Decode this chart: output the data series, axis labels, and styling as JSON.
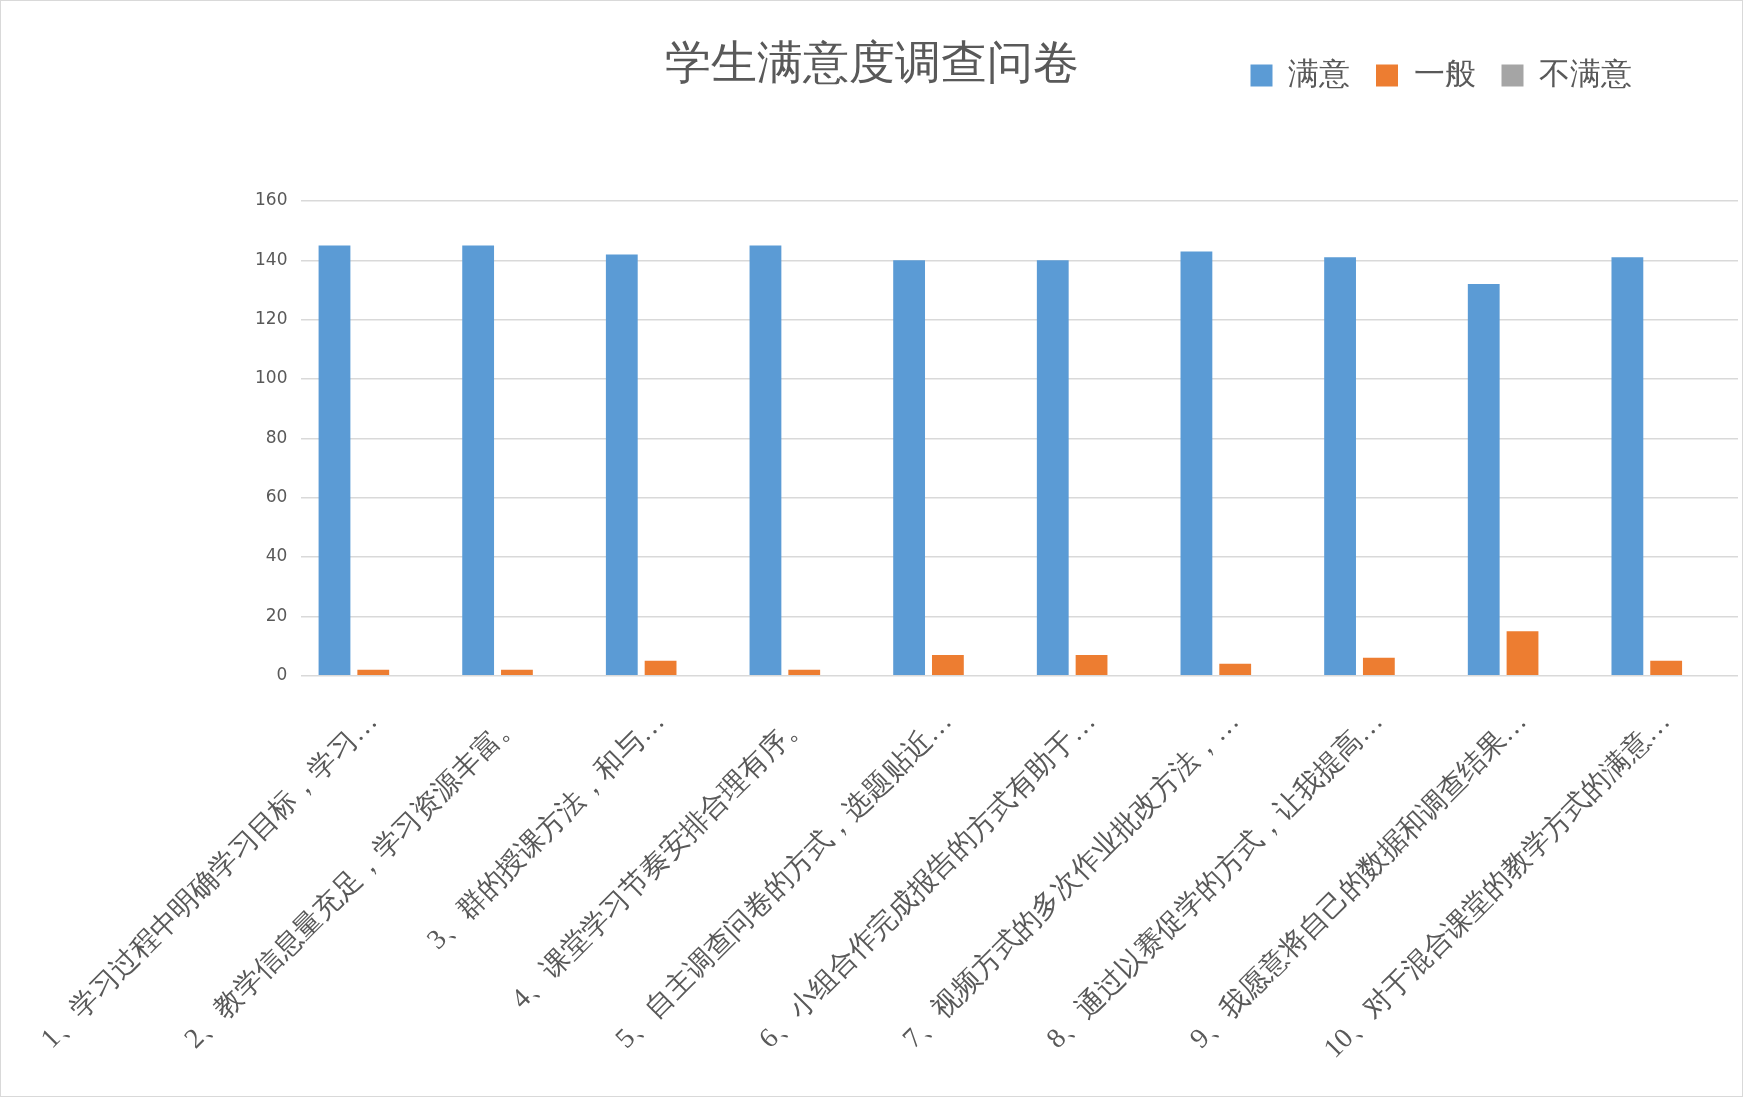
{
  "chart_data": {
    "type": "bar",
    "title": "学生满意度调查问卷",
    "categories": [
      "1、学习过程中明确学习目标，学习…",
      "2、教学信息量充足，学习资源丰富。",
      "3、群的授课方法，和与…",
      "4、课堂学习节奏安排合理有序。",
      "5、自主调查问卷的方式，选题贴近…",
      "6、小组合作完成报告的方式有助于…",
      "7、视频方式的多次作业批改方法，…",
      "8、通过以赛促学的方式，让我提高…",
      "9、我愿意将自己的数据和调查结果…",
      "10、对于混合课堂的教学方式的满意…"
    ],
    "series": [
      {
        "name": "满意",
        "color": "#5b9bd5",
        "values": [
          145,
          145,
          142,
          145,
          140,
          140,
          143,
          141,
          132,
          141
        ]
      },
      {
        "name": "一般",
        "color": "#ed7d31",
        "values": [
          2,
          2,
          5,
          2,
          7,
          7,
          4,
          6,
          15,
          5
        ]
      },
      {
        "name": "不满意",
        "color": "#a5a5a5",
        "values": [
          0,
          0,
          0,
          0,
          0,
          0,
          0,
          0,
          0,
          0
        ]
      }
    ],
    "ylim": [
      0,
      160
    ],
    "yticks": [
      0,
      20,
      40,
      60,
      80,
      100,
      120,
      140,
      160
    ],
    "grid": "y",
    "legend": "top right"
  }
}
